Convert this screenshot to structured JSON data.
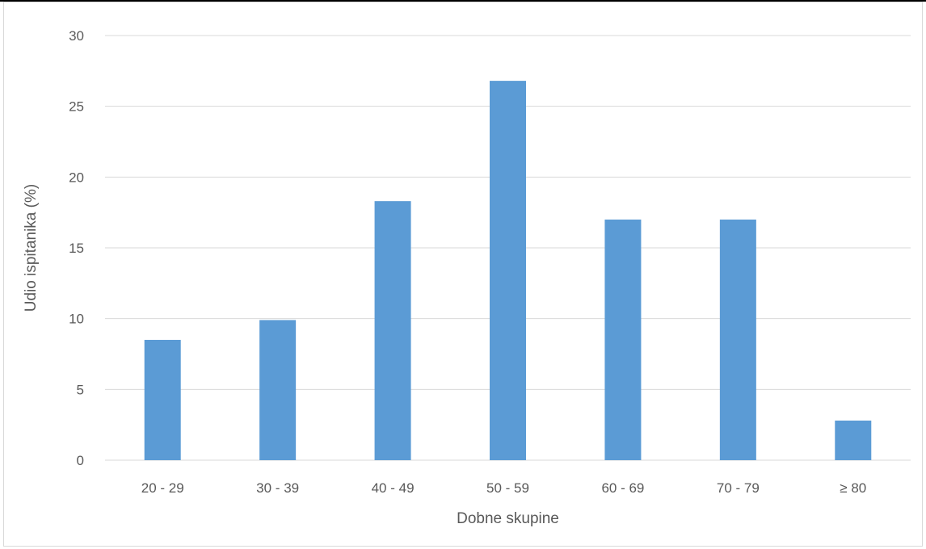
{
  "chart_data": {
    "type": "bar",
    "title": "",
    "xlabel": "Dobne skupine",
    "ylabel": "Udio ispitanika (%)",
    "categories": [
      "20 - 29",
      "30 - 39",
      "40 - 49",
      "50 - 59",
      "60 - 69",
      "70 - 79",
      "≥ 80"
    ],
    "values": [
      8.5,
      9.9,
      18.3,
      26.8,
      17.0,
      17.0,
      2.8
    ],
    "ylim": [
      0,
      30
    ],
    "yticks": [
      "0",
      "5",
      "10",
      "15",
      "20",
      "25",
      "30"
    ],
    "grid": true,
    "legend": "none",
    "colors": {
      "bar": "#5b9bd5",
      "grid": "#d9d9d9",
      "text": "#595959"
    }
  }
}
